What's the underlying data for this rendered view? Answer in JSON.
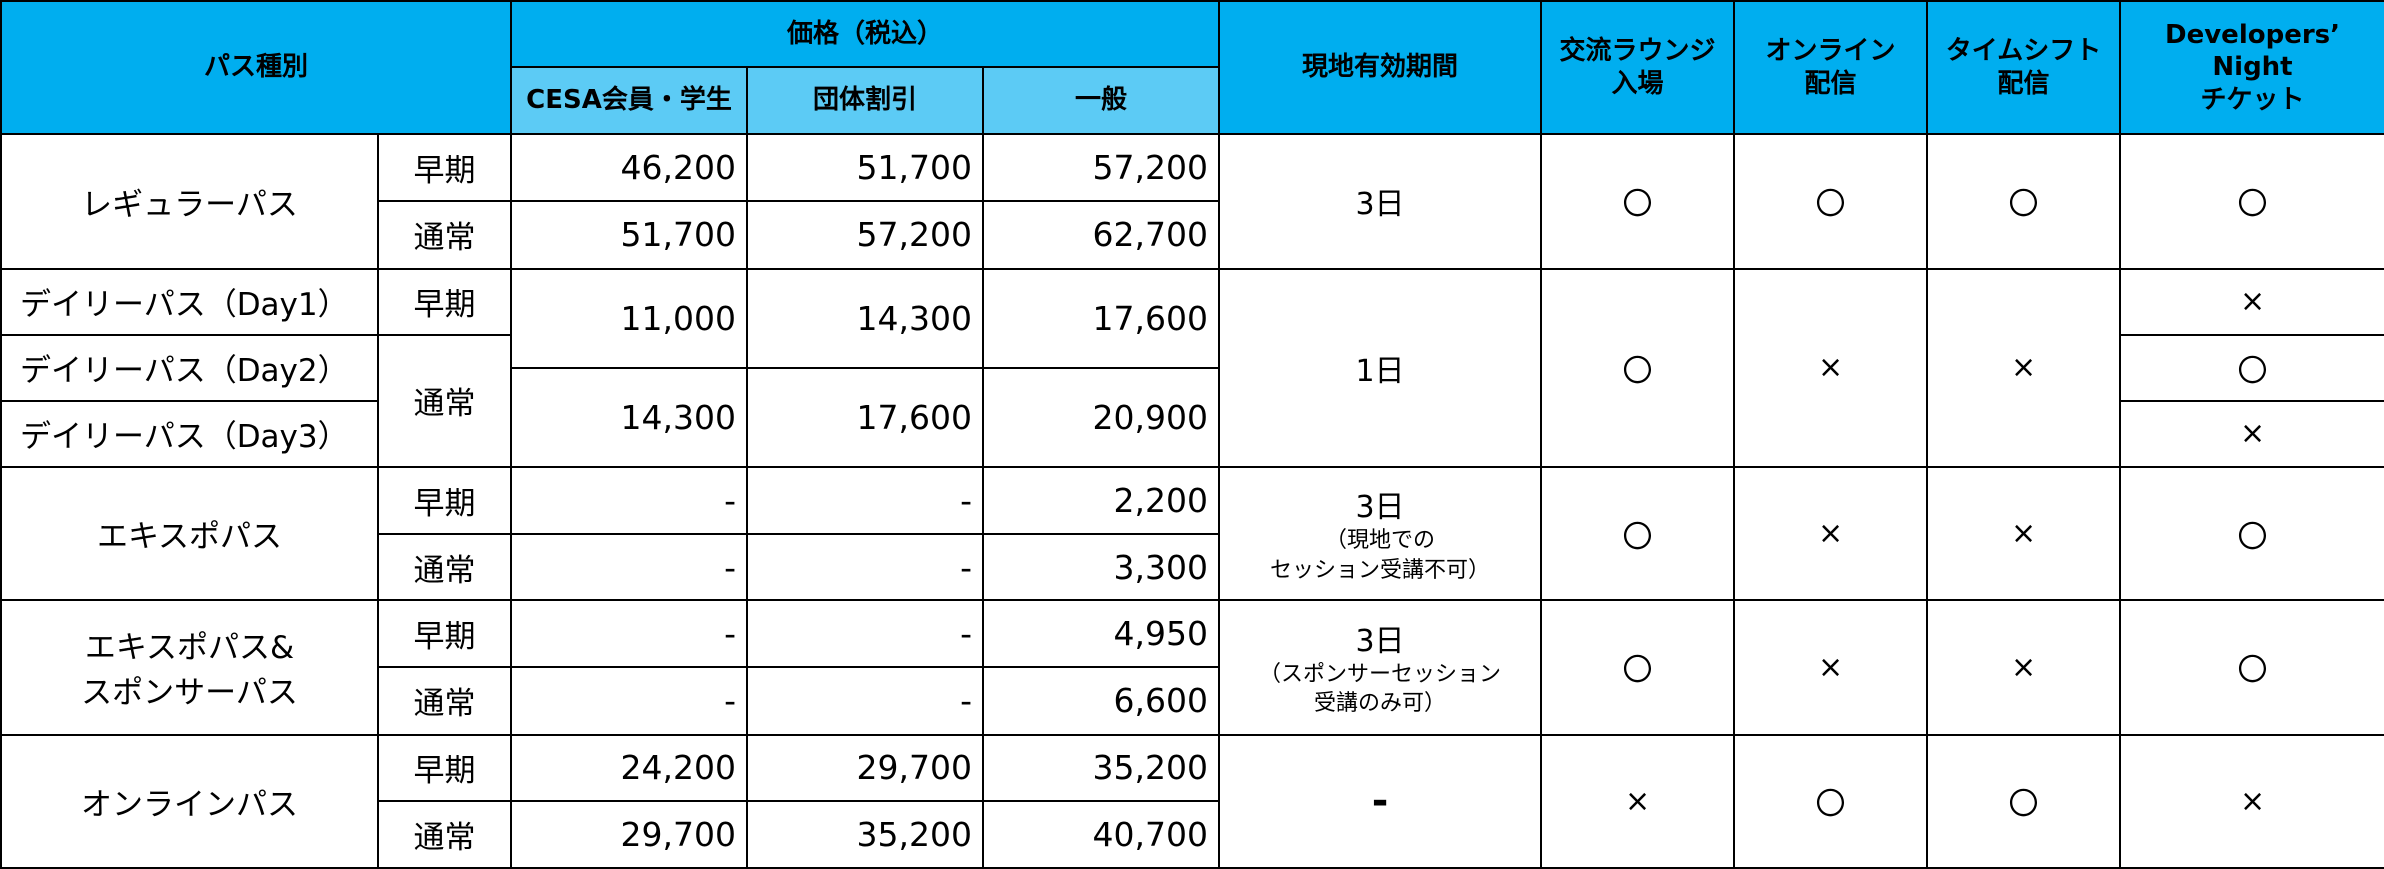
{
  "header": {
    "pass_type": "パス種別",
    "price": "価格（税込）",
    "price_cols": [
      "CESA会員・学生",
      "団体割引",
      "一般"
    ],
    "validity": "現地有効期間",
    "lounge": [
      "交流ラウンジ",
      "入場"
    ],
    "online": [
      "オンライン",
      "配信"
    ],
    "timeshift": [
      "タイムシフト",
      "配信"
    ],
    "devnight": [
      "Developers’",
      "Night",
      "チケット"
    ]
  },
  "tiers": {
    "early": "早期",
    "normal": "通常"
  },
  "rows": {
    "regular": {
      "name": "レギュラーパス",
      "early": [
        "46,200",
        "51,700",
        "57,200"
      ],
      "normal": [
        "51,700",
        "57,200",
        "62,700"
      ],
      "validity": "3日",
      "lounge": "〇",
      "online": "〇",
      "timeshift": "〇",
      "devnight": "〇"
    },
    "daily": {
      "day1": "デイリーパス（Day1）",
      "day2": "デイリーパス（Day2）",
      "day3": "デイリーパス（Day3）",
      "early": [
        "11,000",
        "14,300",
        "17,600"
      ],
      "normal": [
        "14,300",
        "17,600",
        "20,900"
      ],
      "validity": "1日",
      "lounge": "〇",
      "online": "×",
      "timeshift": "×",
      "devnight_day1": "×",
      "devnight_day2": "〇",
      "devnight_day3": "×"
    },
    "expo": {
      "name": "エキスポパス",
      "early": [
        "-",
        "-",
        "2,200"
      ],
      "normal": [
        "-",
        "-",
        "3,300"
      ],
      "validity": "3日",
      "validity_note": [
        "（現地での",
        "セッション受講不可）"
      ],
      "lounge": "〇",
      "online": "×",
      "timeshift": "×",
      "devnight": "〇"
    },
    "sponsor": {
      "name": [
        "エキスポパス&",
        "スポンサーパス"
      ],
      "early": [
        "-",
        "-",
        "4,950"
      ],
      "normal": [
        "-",
        "-",
        "6,600"
      ],
      "validity": "3日",
      "validity_note": [
        "（スポンサーセッション",
        "受講のみ可）"
      ],
      "lounge": "〇",
      "online": "×",
      "timeshift": "×",
      "devnight": "〇"
    },
    "online": {
      "name": "オンラインパス",
      "early": [
        "24,200",
        "29,700",
        "35,200"
      ],
      "normal": [
        "29,700",
        "35,200",
        "40,700"
      ],
      "validity": "-",
      "lounge": "×",
      "online": "〇",
      "timeshift": "〇",
      "devnight": "×"
    }
  }
}
